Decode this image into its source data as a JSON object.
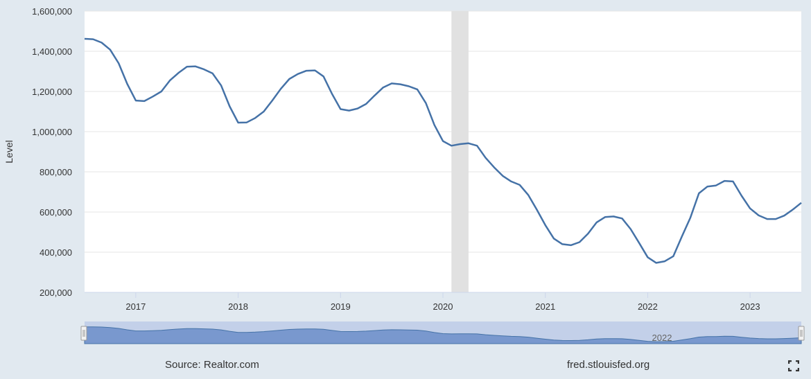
{
  "chart_data": {
    "type": "line",
    "title": "",
    "xlabel": "",
    "ylabel": "Level",
    "ylim": [
      200000,
      1600000
    ],
    "xlim": [
      "2016-07",
      "2023-07"
    ],
    "y_ticks": [
      "200,000",
      "400,000",
      "600,000",
      "800,000",
      "1,000,000",
      "1,200,000",
      "1,400,000",
      "1,600,000"
    ],
    "x_ticks": [
      "2017",
      "2018",
      "2019",
      "2020",
      "2021",
      "2022",
      "2023"
    ],
    "grid": true,
    "recession_shading": {
      "start": "2020-02",
      "end": "2020-04"
    },
    "line_color": "#4572a7",
    "series": [
      {
        "x": [
          "2016-07",
          "2016-08",
          "2016-09",
          "2016-10",
          "2016-11",
          "2016-12",
          "2017-01",
          "2017-02",
          "2017-03",
          "2017-04",
          "2017-05",
          "2017-06",
          "2017-07",
          "2017-08",
          "2017-09",
          "2017-10",
          "2017-11",
          "2017-12",
          "2018-01",
          "2018-02",
          "2018-03",
          "2018-04",
          "2018-05",
          "2018-06",
          "2018-07",
          "2018-08",
          "2018-09",
          "2018-10",
          "2018-11",
          "2018-12",
          "2019-01",
          "2019-02",
          "2019-03",
          "2019-04",
          "2019-05",
          "2019-06",
          "2019-07",
          "2019-08",
          "2019-09",
          "2019-10",
          "2019-11",
          "2019-12",
          "2020-01",
          "2020-02",
          "2020-03",
          "2020-04",
          "2020-05",
          "2020-06",
          "2020-07",
          "2020-08",
          "2020-09",
          "2020-10",
          "2020-11",
          "2020-12",
          "2021-01",
          "2021-02",
          "2021-03",
          "2021-04",
          "2021-05",
          "2021-06",
          "2021-07",
          "2021-08",
          "2021-09",
          "2021-10",
          "2021-11",
          "2021-12",
          "2022-01",
          "2022-02",
          "2022-03",
          "2022-04",
          "2022-05",
          "2022-06",
          "2022-07",
          "2022-08",
          "2022-09",
          "2022-10",
          "2022-11",
          "2022-12",
          "2023-01",
          "2023-02",
          "2023-03",
          "2023-04",
          "2023-05",
          "2023-06",
          "2023-07"
        ],
        "values": [
          1462000,
          1460000,
          1443000,
          1408000,
          1340000,
          1238000,
          1155000,
          1152000,
          1175000,
          1200000,
          1255000,
          1292000,
          1323000,
          1325000,
          1310000,
          1290000,
          1230000,
          1126000,
          1045000,
          1046000,
          1068000,
          1100000,
          1155000,
          1213000,
          1262000,
          1287000,
          1303000,
          1305000,
          1275000,
          1188000,
          1112000,
          1105000,
          1115000,
          1138000,
          1180000,
          1220000,
          1240000,
          1236000,
          1226000,
          1210000,
          1142000,
          1033000,
          953000,
          930000,
          938000,
          942000,
          930000,
          870000,
          822000,
          780000,
          752000,
          735000,
          685000,
          612000,
          535000,
          468000,
          440000,
          435000,
          450000,
          492000,
          548000,
          575000,
          578000,
          568000,
          515000,
          446000,
          375000,
          347000,
          355000,
          380000,
          478000,
          572000,
          693000,
          727000,
          732000,
          755000,
          752000,
          681000,
          618000,
          583000,
          565000,
          565000,
          582000,
          612000,
          646000
        ]
      }
    ]
  },
  "navigator": {
    "label": "2022"
  },
  "footer": {
    "source": "Source: Realtor.com",
    "site": "fred.stlouisfed.org"
  }
}
